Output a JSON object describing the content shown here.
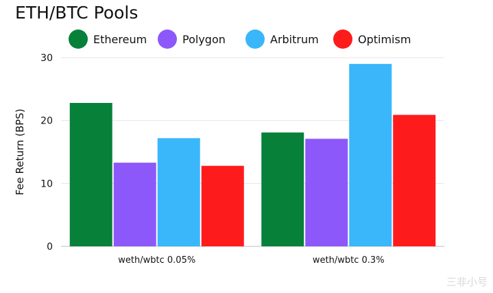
{
  "chart_data": {
    "type": "bar",
    "title": "ETH/BTC Pools",
    "xlabel": "",
    "ylabel": "Fee Return (BPS)",
    "ylim": [
      0,
      30
    ],
    "yticks": [
      0,
      10,
      20,
      30
    ],
    "grid": true,
    "legend_position": "top",
    "categories": [
      "weth/wbtc 0.05%",
      "weth/wbtc 0.3%"
    ],
    "series": [
      {
        "name": "Ethereum",
        "color": "#07813a",
        "values": [
          22.8,
          18.1
        ]
      },
      {
        "name": "Polygon",
        "color": "#8d58fa",
        "values": [
          13.3,
          17.1
        ]
      },
      {
        "name": "Arbitrum",
        "color": "#3ab6fb",
        "values": [
          17.2,
          29.0
        ]
      },
      {
        "name": "Optimism",
        "color": "#fe1b1b",
        "values": [
          12.8,
          20.9
        ]
      }
    ]
  },
  "watermark": "三非小号"
}
